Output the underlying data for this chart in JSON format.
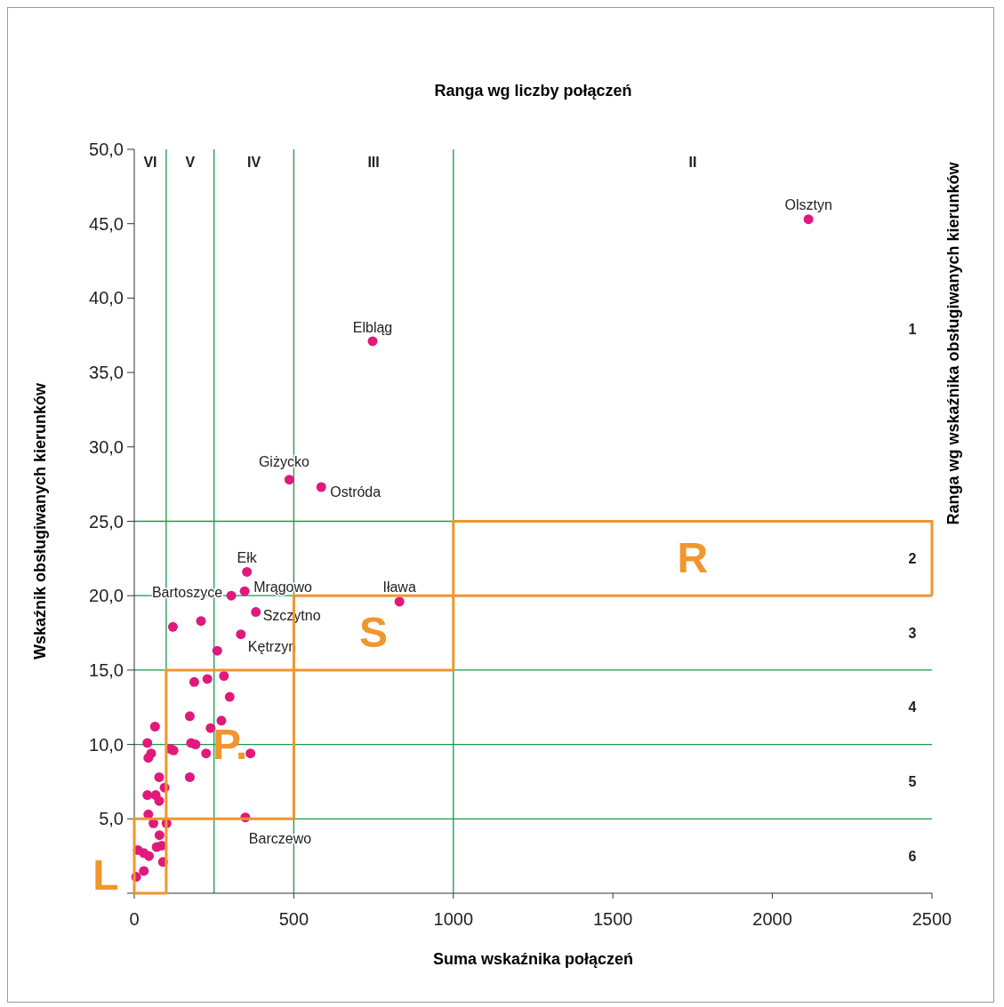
{
  "chart_data": {
    "type": "scatter",
    "xlabel": "Suma wskaźnika połączeń",
    "ylabel": "Wskaźnik obsługiwanych kierunków",
    "x2label": "Ranga wg liczby połączeń",
    "y2label": "Ranga wg wskaźnika obsługiwanych kierunków",
    "xlim": [
      0,
      2500
    ],
    "xticks": [
      0,
      500,
      1000,
      1500,
      2000,
      2500
    ],
    "ylim": [
      0,
      50
    ],
    "yticks": [
      {
        "value": 0,
        "label": null
      },
      {
        "value": 5,
        "label": "5,0"
      },
      {
        "value": 10,
        "label": "10,0"
      },
      {
        "value": 15,
        "label": "15,0"
      },
      {
        "value": 20,
        "label": "20,0"
      },
      {
        "value": 25,
        "label": "25,0"
      },
      {
        "value": 30,
        "label": "30,0"
      },
      {
        "value": 35,
        "label": "35,0"
      },
      {
        "value": 40,
        "label": "40,0"
      },
      {
        "value": 45,
        "label": "45,0"
      },
      {
        "value": 50,
        "label": "50,0"
      }
    ],
    "grid": false,
    "marker": "circle",
    "series": [
      {
        "color": "#e0197d",
        "x": [
          2113,
          747,
          486,
          586,
          831,
          353,
          304,
          346,
          381,
          121,
          209,
          334,
          260,
          188,
          229,
          281,
          299,
          174,
          273,
          239,
          65,
          41,
          178,
          192,
          113,
          123,
          225,
          364,
          53,
          44,
          78,
          174,
          95,
          41,
          67,
          78,
          44,
          60,
          101,
          348,
          79,
          70,
          86,
          11,
          30,
          46,
          90,
          30,
          6
        ],
        "values": [
          45.3,
          37.1,
          27.8,
          27.3,
          19.6,
          21.6,
          20.0,
          20.3,
          18.9,
          17.9,
          18.3,
          17.4,
          16.3,
          14.2,
          14.4,
          14.6,
          13.2,
          11.9,
          11.6,
          11.1,
          11.2,
          10.1,
          10.1,
          10.0,
          9.7,
          9.6,
          9.4,
          9.4,
          9.4,
          9.1,
          7.8,
          7.8,
          7.1,
          6.6,
          6.6,
          6.2,
          5.3,
          4.7,
          4.7,
          5.1,
          3.9,
          3.1,
          3.2,
          2.9,
          2.7,
          2.5,
          2.1,
          1.5,
          1.1
        ],
        "value_labels": [
          "Olsztyn",
          "Elbląg",
          "Giżycko",
          "Ostróda",
          "Iława",
          "Ełk",
          "Bartoszyce",
          "Mrągowo",
          "Szczytno",
          null,
          null,
          "Kętrzyn",
          null,
          null,
          null,
          null,
          null,
          null,
          null,
          null,
          null,
          null,
          null,
          null,
          null,
          null,
          null,
          null,
          null,
          null,
          null,
          null,
          null,
          null,
          null,
          null,
          null,
          null,
          null,
          "Barczewo",
          null,
          null,
          null,
          null,
          null,
          null,
          null,
          null,
          null
        ]
      },
      {
        "type": "line",
        "name": "L",
        "marker": "none",
        "color": "#f0962e",
        "x": [
          0,
          0,
          100,
          100
        ],
        "values": [
          0,
          5,
          5,
          0
        ]
      },
      {
        "type": "line",
        "marker": "none",
        "color": "#f0962e",
        "x": [
          0,
          100
        ],
        "values": [
          0,
          0
        ]
      },
      {
        "type": "line",
        "name": "P.",
        "marker": "none",
        "color": "#f0962e",
        "x": [
          100,
          100,
          500,
          500
        ],
        "values": [
          5,
          15,
          15,
          5
        ]
      },
      {
        "type": "line",
        "marker": "none",
        "color": "#f0962e",
        "x": [
          100,
          500
        ],
        "values": [
          5,
          5
        ]
      },
      {
        "type": "line",
        "name": "S",
        "marker": "none",
        "color": "#f0962e",
        "x": [
          500,
          500,
          1000,
          1000
        ],
        "values": [
          15,
          20,
          20,
          15
        ]
      },
      {
        "type": "line",
        "marker": "none",
        "color": "#f0962e",
        "x": [
          500,
          1000
        ],
        "values": [
          15,
          15
        ]
      },
      {
        "type": "line",
        "name": "R",
        "marker": "none",
        "color": "#f0962e",
        "x": [
          1000,
          1000,
          2500,
          2500
        ],
        "values": [
          20,
          25,
          25,
          20
        ]
      },
      {
        "type": "line",
        "marker": "none",
        "color": "#f0962e",
        "x": [
          1000,
          2500
        ],
        "values": [
          20,
          20
        ]
      }
    ],
    "ref_lines": [
      {
        "axis": "x",
        "value": 100,
        "color": "#1a9a4a"
      },
      {
        "axis": "x",
        "value": 250,
        "color": "#1a9a4a"
      },
      {
        "axis": "x",
        "value": 500,
        "color": "#1a9a4a"
      },
      {
        "axis": "x",
        "value": 1000,
        "color": "#1a9a4a"
      },
      {
        "axis": "y",
        "value": 5,
        "color": "#1a9a4a"
      },
      {
        "axis": "y",
        "value": 10,
        "color": "#1a9a4a"
      },
      {
        "axis": "y",
        "value": 15,
        "color": "#1a9a4a"
      },
      {
        "axis": "y",
        "value": 20,
        "color": "#1a9a4a"
      },
      {
        "axis": "y",
        "value": 25,
        "color": "#1a9a4a"
      }
    ],
    "annotations": [
      "VI",
      "V",
      "IV",
      "III",
      "II",
      "1",
      "2",
      "3",
      "4",
      "5",
      "6"
    ]
  }
}
